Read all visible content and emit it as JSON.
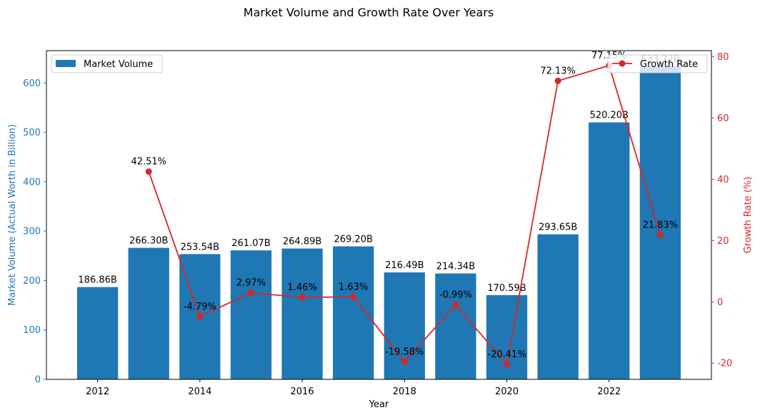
{
  "chart_data": {
    "type": "bar+line",
    "title": "Market Volume and Growth Rate Over Years",
    "xlabel": "Year",
    "x": [
      2012,
      2013,
      2014,
      2015,
      2016,
      2017,
      2018,
      2019,
      2020,
      2021,
      2022,
      2023
    ],
    "x_ticks": [
      2012,
      2014,
      2016,
      2018,
      2020,
      2022
    ],
    "xlim": [
      2011.0,
      2024.0
    ],
    "grid": false,
    "series": [
      {
        "name": "Market Volume",
        "type": "bar",
        "axis": "left",
        "color": "#1f77b4",
        "values": [
          186.86,
          266.3,
          253.54,
          261.07,
          264.89,
          269.2,
          216.49,
          214.34,
          170.59,
          293.65,
          520.2,
          633.77
        ],
        "labels": [
          "186.86B",
          "266.30B",
          "253.54B",
          "261.07B",
          "264.89B",
          "269.20B",
          "216.49B",
          "214.34B",
          "170.59B",
          "293.65B",
          "520.20B",
          "633.77B"
        ]
      },
      {
        "name": "Growth Rate",
        "type": "line",
        "axis": "right",
        "color": "#d62728",
        "x": [
          2013,
          2014,
          2015,
          2016,
          2017,
          2018,
          2019,
          2020,
          2021,
          2022,
          2023
        ],
        "values": [
          42.51,
          -4.79,
          2.97,
          1.46,
          1.63,
          -19.58,
          -0.99,
          -20.41,
          72.13,
          77.15,
          21.83
        ],
        "labels": [
          "42.51%",
          "-4.79%",
          "2.97%",
          "1.46%",
          "1.63%",
          "-19.58%",
          "-0.99%",
          "-20.41%",
          "72.13%",
          "77.15%",
          "21.83%"
        ]
      }
    ],
    "y_left": {
      "label": "Market Volume (Actual Worth in Billion)",
      "range": [
        0,
        665.5
      ],
      "ticks": [
        0,
        100,
        200,
        300,
        400,
        500,
        600
      ],
      "color": "#1f77b4"
    },
    "y_right": {
      "label": "Growth Rate (%)",
      "range": [
        -25.3,
        82.0
      ],
      "ticks": [
        -20,
        0,
        20,
        40,
        60,
        80
      ],
      "color": "#d62728"
    },
    "legends": [
      {
        "entry": "Market Volume",
        "placement": "top-left"
      },
      {
        "entry": "Growth Rate",
        "placement": "top-right"
      }
    ]
  }
}
